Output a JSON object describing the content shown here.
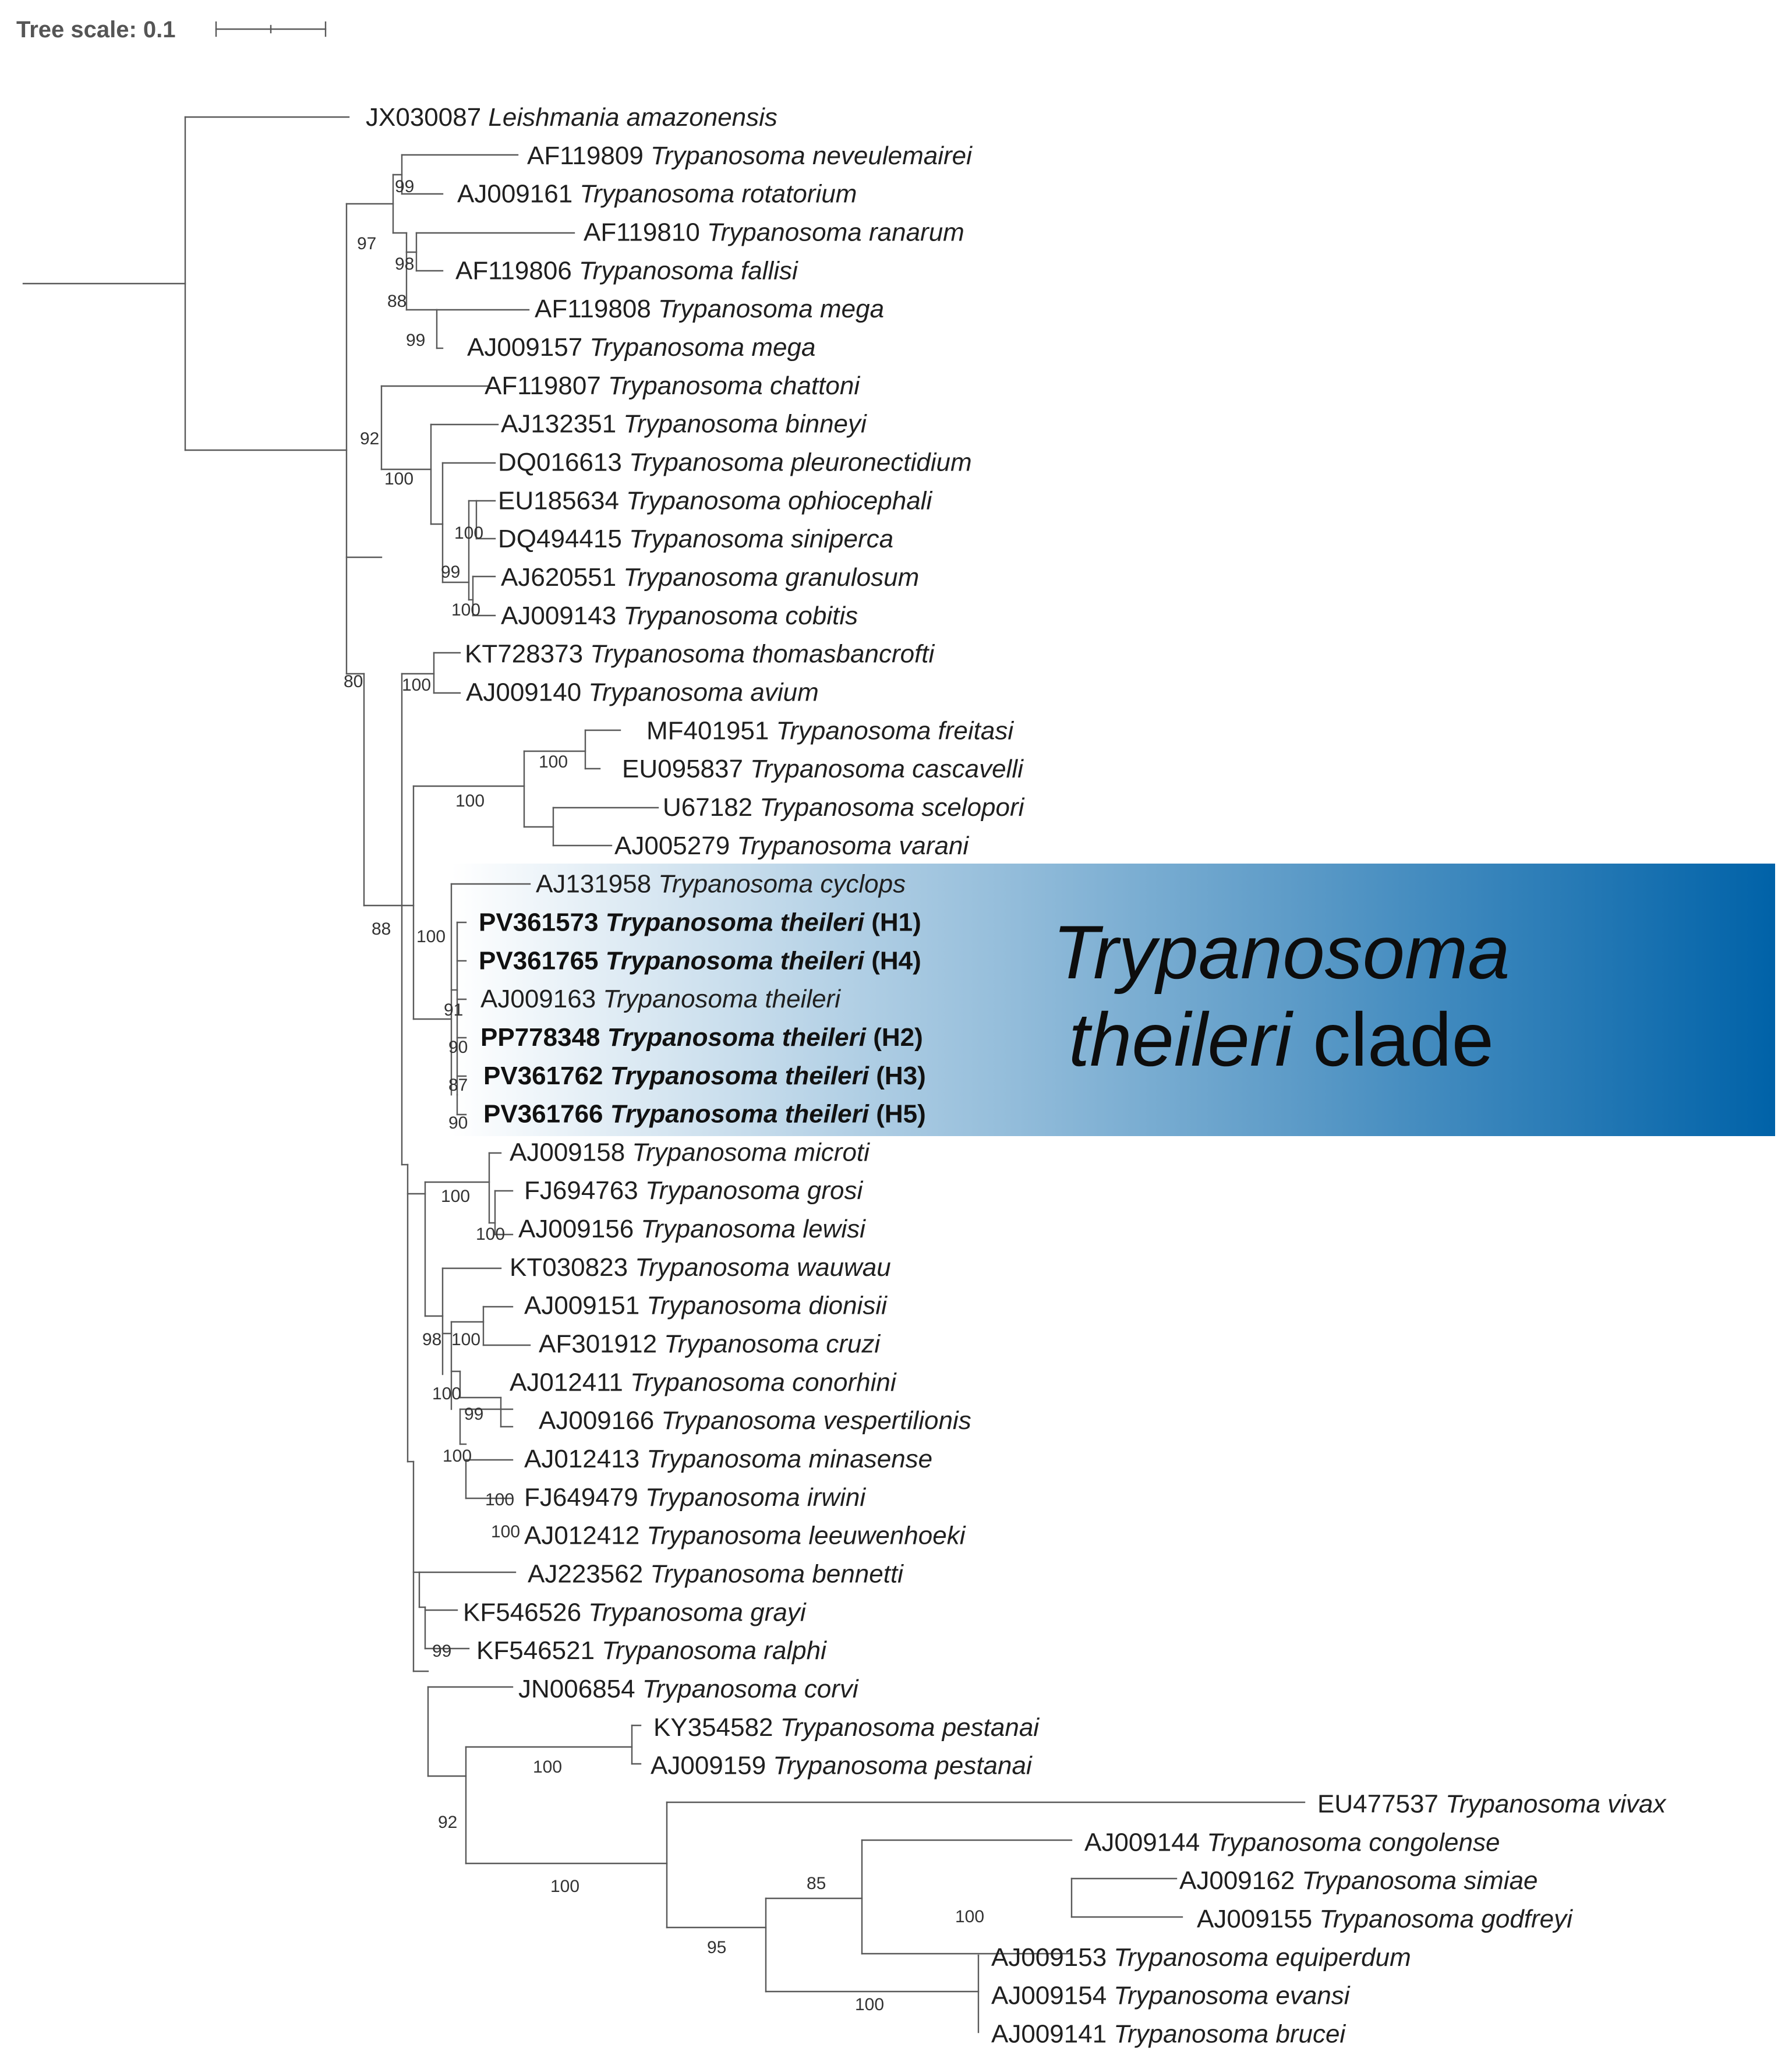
{
  "scale": {
    "label": "Tree scale: 0.1"
  },
  "clade": {
    "line1": "Trypanosoma",
    "line2_italic": "theileri",
    "line2_plain": " clade",
    "gradient_start": "#ffffff",
    "gradient_end": "#0062a8"
  },
  "tips": [
    {
      "acc": "JX030087",
      "sp": "Leishmania amazonensis"
    },
    {
      "acc": "AF119809",
      "sp": "Trypanosoma neveulemairei"
    },
    {
      "acc": "AJ009161",
      "sp": "Trypanosoma rotatorium"
    },
    {
      "acc": "AF119810",
      "sp": "Trypanosoma ranarum"
    },
    {
      "acc": "AF119806",
      "sp": "Trypanosoma fallisi"
    },
    {
      "acc": "AF119808",
      "sp": "Trypanosoma mega"
    },
    {
      "acc": "AJ009157",
      "sp": "Trypanosoma mega"
    },
    {
      "acc": "AF119807",
      "sp": "Trypanosoma chattoni"
    },
    {
      "acc": "AJ132351",
      "sp": "Trypanosoma binneyi"
    },
    {
      "acc": "DQ016613",
      "sp": "Trypanosoma pleuronectidium"
    },
    {
      "acc": "EU185634",
      "sp": "Trypanosoma ophiocephali"
    },
    {
      "acc": "DQ494415",
      "sp": "Trypanosoma siniperca"
    },
    {
      "acc": "AJ620551",
      "sp": "Trypanosoma granulosum"
    },
    {
      "acc": "AJ009143",
      "sp": "Trypanosoma cobitis"
    },
    {
      "acc": "KT728373",
      "sp": "Trypanosoma thomasbancrofti"
    },
    {
      "acc": "AJ009140",
      "sp": "Trypanosoma avium"
    },
    {
      "acc": "MF401951",
      "sp": "Trypanosoma freitasi"
    },
    {
      "acc": "EU095837",
      "sp": "Trypanosoma cascavelli"
    },
    {
      "acc": "U67182",
      "sp": "Trypanosoma scelopori"
    },
    {
      "acc": "AJ005279",
      "sp": "Trypanosoma varani"
    },
    {
      "acc": "AJ131958",
      "sp": "Trypanosoma cyclops"
    },
    {
      "acc": "PV361573",
      "sp": "Trypanosoma theileri",
      "suffix": "(H1)",
      "bold": true
    },
    {
      "acc": "PV361765",
      "sp": "Trypanosoma theileri",
      "suffix": "(H4)",
      "bold": true
    },
    {
      "acc": "AJ009163",
      "sp": "Trypanosoma theileri"
    },
    {
      "acc": "PP778348",
      "sp": "Trypanosoma theileri",
      "suffix": "(H2)",
      "bold": true
    },
    {
      "acc": "PV361762",
      "sp": "Trypanosoma theileri",
      "suffix": "(H3)",
      "bold": true
    },
    {
      "acc": "PV361766",
      "sp": "Trypanosoma theileri",
      "suffix": "(H5)",
      "bold": true
    },
    {
      "acc": "AJ009158",
      "sp": "Trypanosoma microti"
    },
    {
      "acc": "FJ694763",
      "sp": "Trypanosoma grosi"
    },
    {
      "acc": "AJ009156",
      "sp": "Trypanosoma lewisi"
    },
    {
      "acc": "KT030823",
      "sp": "Trypanosoma wauwau"
    },
    {
      "acc": "AJ009151",
      "sp": "Trypanosoma dionisii"
    },
    {
      "acc": "AF301912",
      "sp": "Trypanosoma cruzi"
    },
    {
      "acc": "AJ012411",
      "sp": "Trypanosoma conorhini"
    },
    {
      "acc": "AJ009166",
      "sp": "Trypanosoma vespertilionis"
    },
    {
      "acc": "AJ012413",
      "sp": "Trypanosoma minasense"
    },
    {
      "acc": "FJ649479",
      "sp": "Trypanosoma irwini"
    },
    {
      "acc": "AJ012412",
      "sp": "Trypanosoma leeuwenhoeki"
    },
    {
      "acc": "AJ223562",
      "sp": "Trypanosoma bennetti"
    },
    {
      "acc": "KF546526",
      "sp": "Trypanosoma grayi"
    },
    {
      "acc": "KF546521",
      "sp": "Trypanosoma ralphi"
    },
    {
      "acc": "JN006854",
      "sp": "Trypanosoma corvi"
    },
    {
      "acc": "KY354582",
      "sp": "Trypanosoma pestanai"
    },
    {
      "acc": "AJ009159",
      "sp": "Trypanosoma pestanai"
    },
    {
      "acc": "EU477537",
      "sp": "Trypanosoma vivax"
    },
    {
      "acc": "AJ009144",
      "sp": "Trypanosoma congolense"
    },
    {
      "acc": "AJ009162",
      "sp": "Trypanosoma simiae"
    },
    {
      "acc": "AJ009155",
      "sp": "Trypanosoma godfreyi"
    },
    {
      "acc": "AJ009153",
      "sp": "Trypanosoma equiperdum"
    },
    {
      "acc": "AJ009154",
      "sp": "Trypanosoma evansi"
    },
    {
      "acc": "AJ009141",
      "sp": "Trypanosoma brucei"
    }
  ],
  "bootstraps": [
    "99",
    "97",
    "98",
    "88",
    "99",
    "92",
    "100",
    "100",
    "99",
    "100",
    "80",
    "100",
    "100",
    "100",
    "88",
    "100",
    "91",
    "90",
    "87",
    "90",
    "100",
    "100",
    "98",
    "100",
    "100",
    "99",
    "100",
    "100",
    "100",
    "99",
    "100",
    "92",
    "100",
    "95",
    "85",
    "100",
    "100"
  ]
}
